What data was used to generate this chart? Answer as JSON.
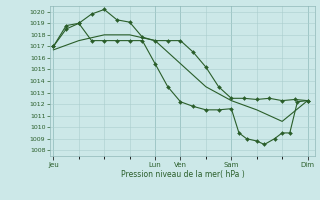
{
  "background_color": "#cce8e8",
  "grid_color": "#aacece",
  "line_color": "#2a5e2a",
  "ylabel_text": "Pression niveau de la mer( hPa )",
  "ylim": [
    1007.5,
    1020.5
  ],
  "yticks": [
    1008,
    1009,
    1010,
    1011,
    1012,
    1013,
    1014,
    1015,
    1016,
    1017,
    1018,
    1019,
    1020
  ],
  "xtick_labels": [
    "Jeu",
    "",
    "",
    "",
    "Lun",
    "Ven",
    "",
    "Sam",
    "",
    "",
    "Dim"
  ],
  "xtick_positions": [
    0,
    1,
    2,
    3,
    4,
    5,
    6,
    7,
    8,
    9,
    10
  ],
  "xlabel_ticks": [
    0,
    4,
    5,
    7,
    10
  ],
  "xlabel_names": [
    "Jeu",
    "Lun",
    "Ven",
    "Sam",
    "Dim"
  ],
  "vline_positions": [
    0,
    4,
    5,
    7,
    10
  ],
  "series1_x": [
    0.0,
    0.5,
    1.0,
    1.5,
    2.0,
    2.5,
    3.0,
    3.5,
    4.0,
    4.5,
    5.0,
    5.5,
    6.0,
    6.5,
    7.0,
    7.5,
    8.0,
    8.5,
    9.0,
    9.5,
    10.0
  ],
  "series1_y": [
    1017.0,
    1018.5,
    1019.0,
    1019.8,
    1020.2,
    1019.3,
    1019.1,
    1017.8,
    1017.5,
    1017.5,
    1017.5,
    1016.5,
    1015.2,
    1013.5,
    1012.5,
    1012.5,
    1012.4,
    1012.5,
    1012.3,
    1012.4,
    1012.3
  ],
  "series2_x": [
    0.0,
    1.0,
    2.0,
    3.0,
    4.0,
    5.0,
    6.0,
    7.0,
    8.0,
    9.0,
    10.0
  ],
  "series2_y": [
    1016.7,
    1017.5,
    1018.0,
    1018.0,
    1017.5,
    1015.5,
    1013.5,
    1012.3,
    1011.5,
    1010.5,
    1012.3
  ],
  "series3_x": [
    0.0,
    0.5,
    1.0,
    1.5,
    2.0,
    2.5,
    3.0,
    3.5,
    4.0,
    4.5,
    5.0,
    5.5,
    6.0,
    6.5,
    7.0,
    7.3,
    7.6,
    8.0,
    8.3,
    8.7,
    9.0,
    9.3,
    9.6,
    10.0
  ],
  "series3_y": [
    1017.0,
    1018.8,
    1019.0,
    1017.5,
    1017.5,
    1017.5,
    1017.5,
    1017.5,
    1015.5,
    1013.5,
    1012.2,
    1011.8,
    1011.5,
    1011.5,
    1011.6,
    1009.5,
    1009.0,
    1008.8,
    1008.5,
    1009.0,
    1009.5,
    1009.5,
    1012.2,
    1012.3
  ]
}
